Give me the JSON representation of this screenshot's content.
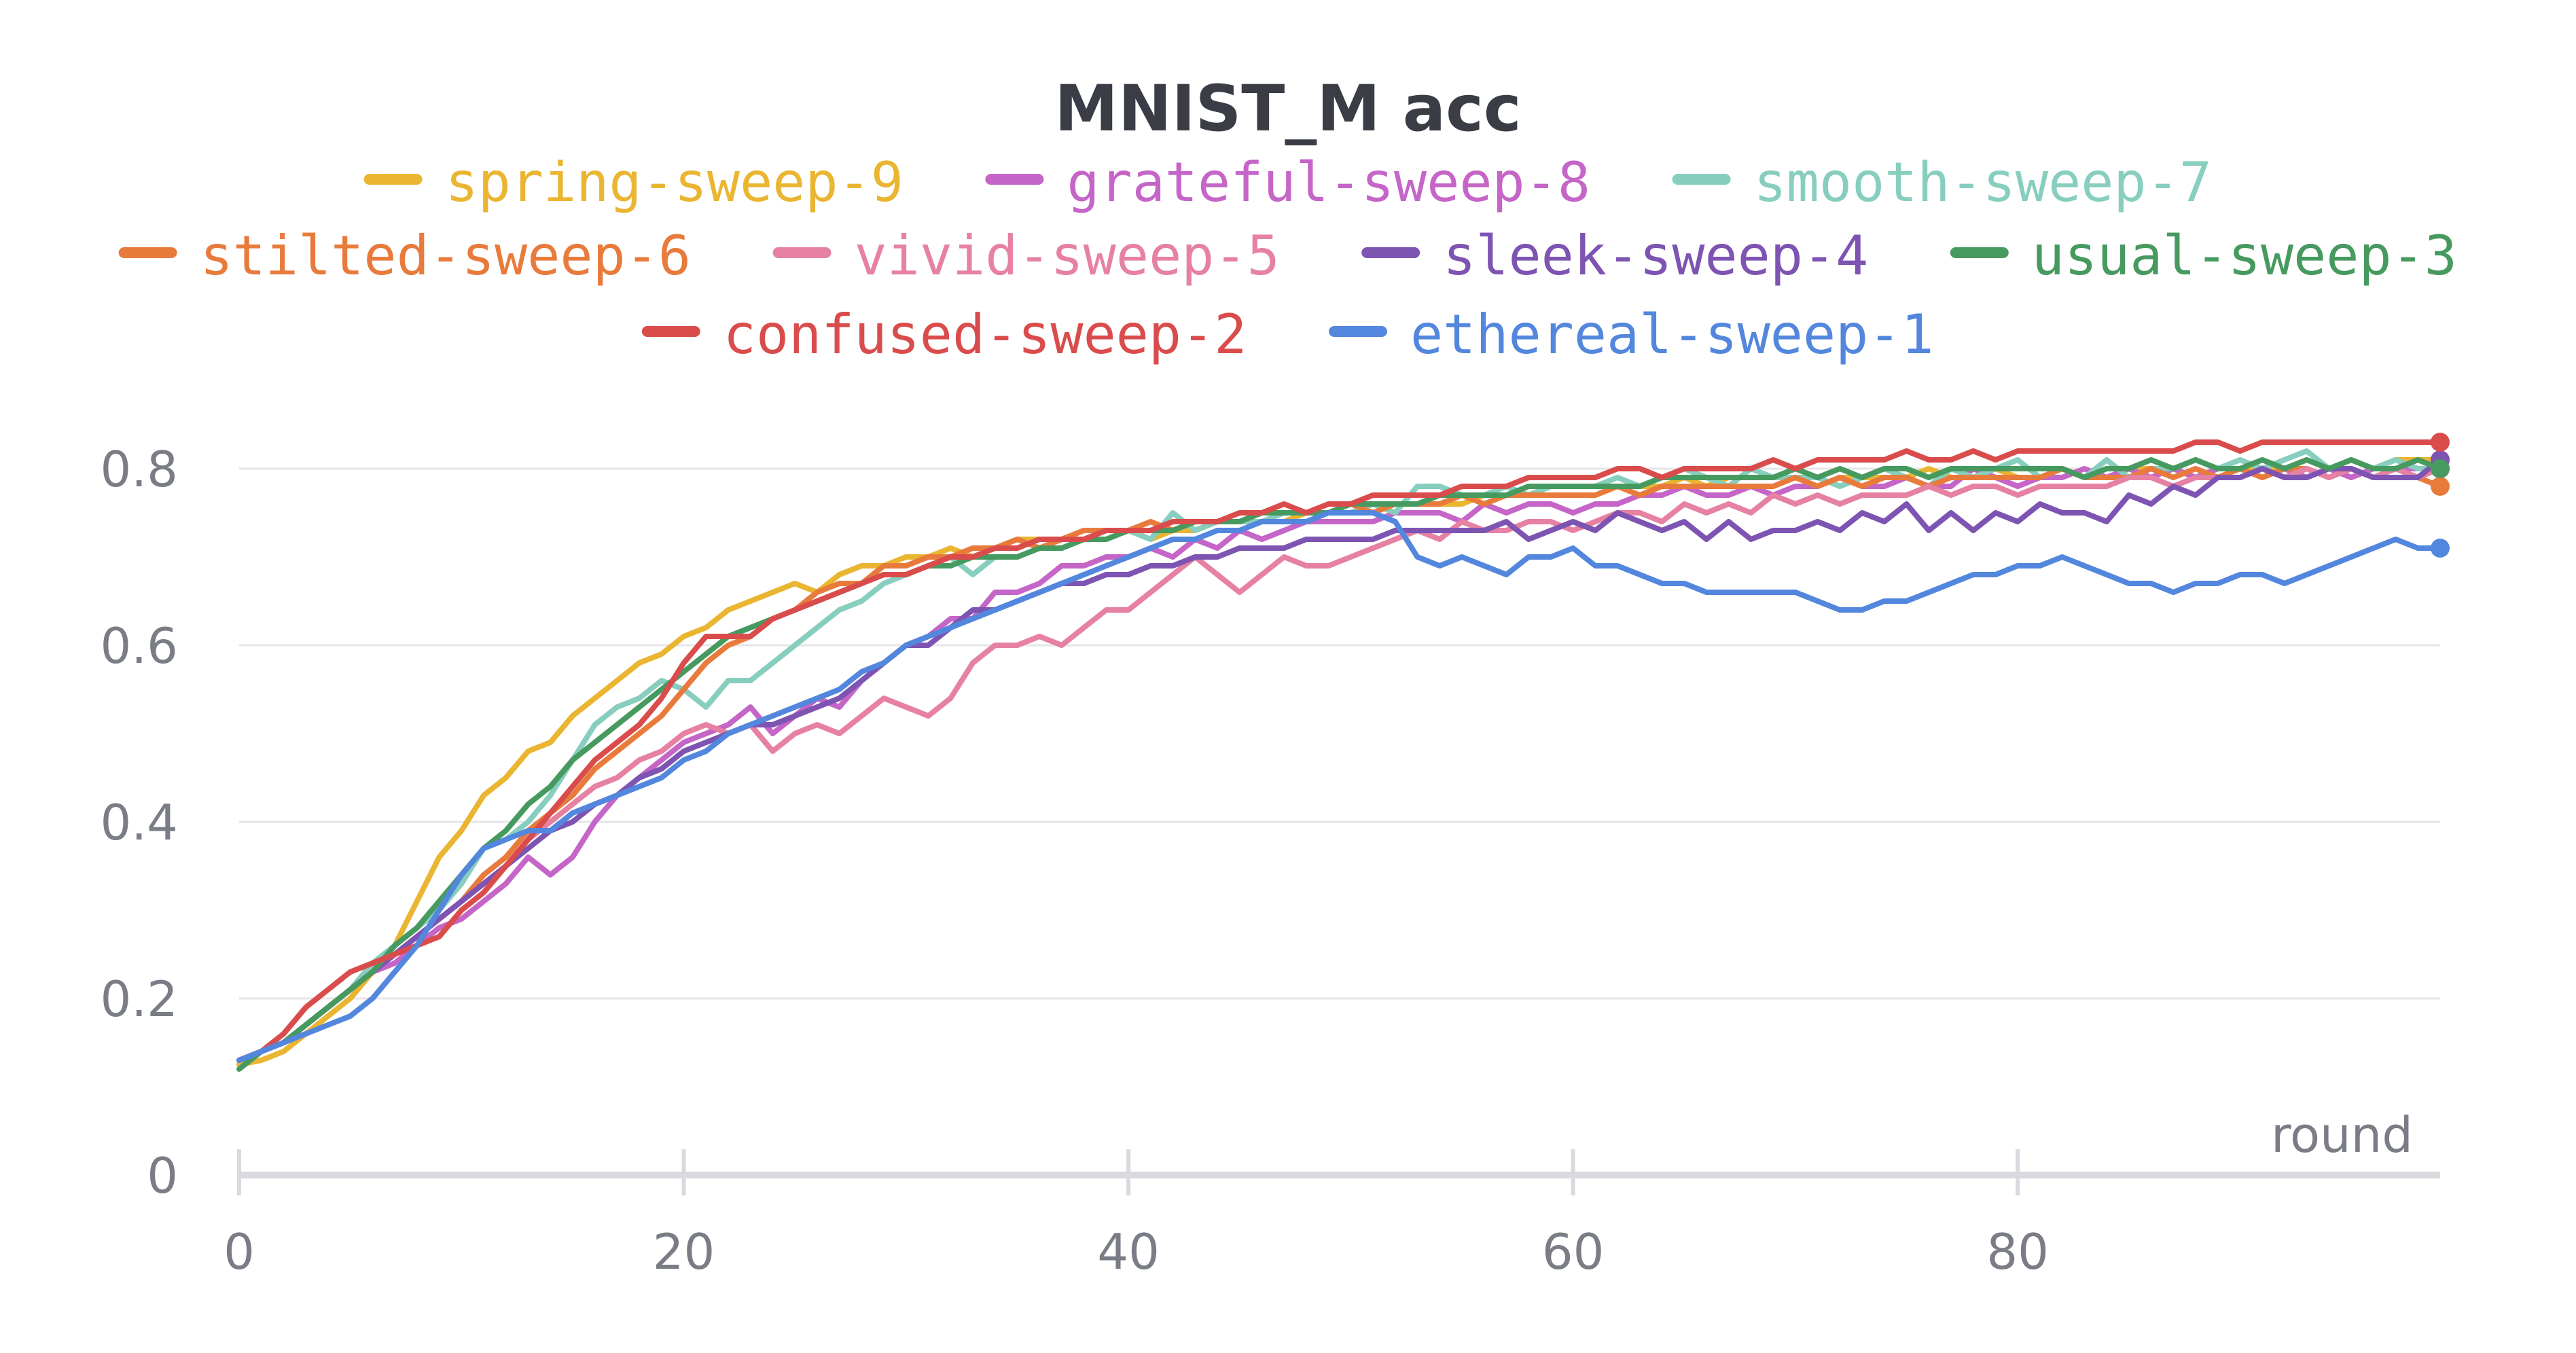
{
  "chart_data": {
    "type": "line",
    "title": "MNIST_M acc",
    "xlabel": "round",
    "ylabel": "",
    "xlim": [
      0,
      99
    ],
    "ylim": [
      0,
      0.9
    ],
    "x_ticks": [
      0,
      20,
      40,
      60,
      80
    ],
    "y_ticks": [
      0,
      0.2,
      0.4,
      0.6,
      0.8
    ],
    "grid": true,
    "legend_position": "top",
    "series": [
      {
        "name": "spring-sweep-9",
        "color": "#eab531",
        "values": [
          0.125,
          0.13,
          0.14,
          0.16,
          0.18,
          0.2,
          0.23,
          0.26,
          0.31,
          0.36,
          0.39,
          0.43,
          0.45,
          0.48,
          0.49,
          0.52,
          0.54,
          0.56,
          0.58,
          0.59,
          0.61,
          0.62,
          0.64,
          0.65,
          0.66,
          0.67,
          0.66,
          0.68,
          0.69,
          0.69,
          0.7,
          0.7,
          0.71,
          0.7,
          0.71,
          0.72,
          0.72,
          0.72,
          0.73,
          0.73,
          0.73,
          0.72,
          0.73,
          0.73,
          0.74,
          0.74,
          0.74,
          0.74,
          0.75,
          0.75,
          0.75,
          0.76,
          0.76,
          0.76,
          0.76,
          0.76,
          0.77,
          0.77,
          0.77,
          0.78,
          0.78,
          0.78,
          0.78,
          0.78,
          0.78,
          0.79,
          0.78,
          0.79,
          0.79,
          0.79,
          0.79,
          0.78,
          0.79,
          0.79,
          0.79,
          0.79,
          0.8,
          0.79,
          0.79,
          0.8,
          0.79,
          0.79,
          0.8,
          0.79,
          0.8,
          0.8,
          0.8,
          0.8,
          0.79,
          0.8,
          0.8,
          0.8,
          0.8,
          0.81,
          0.8,
          0.81,
          0.8,
          0.81,
          0.81,
          0.81
        ]
      },
      {
        "name": "grateful-sweep-8",
        "color": "#c565c7",
        "values": [
          0.13,
          0.14,
          0.15,
          0.17,
          0.19,
          0.21,
          0.23,
          0.24,
          0.26,
          0.28,
          0.29,
          0.31,
          0.33,
          0.36,
          0.34,
          0.36,
          0.4,
          0.43,
          0.45,
          0.47,
          0.49,
          0.5,
          0.51,
          0.53,
          0.5,
          0.52,
          0.54,
          0.53,
          0.56,
          0.58,
          0.6,
          0.61,
          0.63,
          0.63,
          0.66,
          0.66,
          0.67,
          0.69,
          0.69,
          0.7,
          0.7,
          0.71,
          0.7,
          0.72,
          0.71,
          0.73,
          0.72,
          0.73,
          0.74,
          0.74,
          0.74,
          0.74,
          0.75,
          0.75,
          0.75,
          0.74,
          0.76,
          0.75,
          0.76,
          0.76,
          0.75,
          0.76,
          0.76,
          0.77,
          0.77,
          0.78,
          0.77,
          0.77,
          0.78,
          0.77,
          0.78,
          0.78,
          0.79,
          0.78,
          0.78,
          0.79,
          0.78,
          0.78,
          0.8,
          0.79,
          0.78,
          0.79,
          0.79,
          0.8,
          0.79,
          0.8,
          0.79,
          0.8,
          0.79,
          0.8,
          0.8,
          0.79,
          0.8,
          0.79,
          0.8,
          0.79,
          0.8,
          0.8,
          0.8,
          0.8
        ]
      },
      {
        "name": "smooth-sweep-7",
        "color": "#87cebf",
        "values": [
          0.13,
          0.14,
          0.15,
          0.17,
          0.19,
          0.21,
          0.24,
          0.26,
          0.28,
          0.3,
          0.33,
          0.37,
          0.38,
          0.4,
          0.43,
          0.47,
          0.51,
          0.53,
          0.54,
          0.56,
          0.55,
          0.53,
          0.56,
          0.56,
          0.58,
          0.6,
          0.62,
          0.64,
          0.65,
          0.67,
          0.68,
          0.69,
          0.7,
          0.68,
          0.7,
          0.7,
          0.71,
          0.71,
          0.72,
          0.72,
          0.73,
          0.72,
          0.75,
          0.73,
          0.74,
          0.74,
          0.74,
          0.75,
          0.75,
          0.75,
          0.75,
          0.76,
          0.75,
          0.78,
          0.78,
          0.77,
          0.77,
          0.78,
          0.77,
          0.78,
          0.78,
          0.78,
          0.79,
          0.78,
          0.79,
          0.8,
          0.79,
          0.78,
          0.8,
          0.79,
          0.79,
          0.79,
          0.78,
          0.79,
          0.8,
          0.79,
          0.78,
          0.8,
          0.79,
          0.8,
          0.81,
          0.79,
          0.8,
          0.79,
          0.81,
          0.79,
          0.8,
          0.8,
          0.81,
          0.8,
          0.81,
          0.8,
          0.81,
          0.82,
          0.8,
          0.81,
          0.8,
          0.81,
          0.8,
          0.8
        ]
      },
      {
        "name": "stilted-sweep-6",
        "color": "#e87b3c",
        "values": [
          0.13,
          0.14,
          0.15,
          0.17,
          0.19,
          0.21,
          0.23,
          0.25,
          0.27,
          0.29,
          0.31,
          0.34,
          0.36,
          0.39,
          0.41,
          0.43,
          0.46,
          0.48,
          0.5,
          0.52,
          0.55,
          0.58,
          0.6,
          0.61,
          0.63,
          0.64,
          0.66,
          0.67,
          0.67,
          0.69,
          0.69,
          0.7,
          0.7,
          0.71,
          0.71,
          0.72,
          0.71,
          0.72,
          0.73,
          0.73,
          0.73,
          0.74,
          0.73,
          0.74,
          0.74,
          0.74,
          0.75,
          0.75,
          0.75,
          0.75,
          0.76,
          0.75,
          0.76,
          0.76,
          0.76,
          0.77,
          0.76,
          0.77,
          0.77,
          0.77,
          0.77,
          0.77,
          0.78,
          0.77,
          0.78,
          0.78,
          0.78,
          0.78,
          0.78,
          0.78,
          0.79,
          0.78,
          0.79,
          0.78,
          0.79,
          0.79,
          0.78,
          0.79,
          0.79,
          0.79,
          0.79,
          0.79,
          0.8,
          0.79,
          0.79,
          0.79,
          0.8,
          0.79,
          0.8,
          0.79,
          0.8,
          0.79,
          0.8,
          0.8,
          0.79,
          0.8,
          0.79,
          0.8,
          0.79,
          0.78
        ]
      },
      {
        "name": "vivid-sweep-5",
        "color": "#e681a4",
        "values": [
          0.13,
          0.14,
          0.15,
          0.17,
          0.19,
          0.21,
          0.23,
          0.25,
          0.27,
          0.29,
          0.31,
          0.33,
          0.35,
          0.38,
          0.4,
          0.42,
          0.44,
          0.45,
          0.47,
          0.48,
          0.5,
          0.51,
          0.5,
          0.51,
          0.48,
          0.5,
          0.51,
          0.5,
          0.52,
          0.54,
          0.53,
          0.52,
          0.54,
          0.58,
          0.6,
          0.6,
          0.61,
          0.6,
          0.62,
          0.64,
          0.64,
          0.66,
          0.68,
          0.7,
          0.68,
          0.66,
          0.68,
          0.7,
          0.69,
          0.69,
          0.7,
          0.71,
          0.72,
          0.73,
          0.72,
          0.74,
          0.73,
          0.73,
          0.74,
          0.74,
          0.73,
          0.74,
          0.75,
          0.75,
          0.74,
          0.76,
          0.75,
          0.76,
          0.75,
          0.77,
          0.76,
          0.77,
          0.76,
          0.77,
          0.77,
          0.77,
          0.78,
          0.77,
          0.78,
          0.78,
          0.77,
          0.78,
          0.78,
          0.78,
          0.78,
          0.79,
          0.79,
          0.78,
          0.79,
          0.79,
          0.79,
          0.8,
          0.79,
          0.8,
          0.79,
          0.8,
          0.79,
          0.8,
          0.79,
          0.8
        ]
      },
      {
        "name": "sleek-sweep-4",
        "color": "#7d54b2",
        "values": [
          0.13,
          0.14,
          0.15,
          0.17,
          0.19,
          0.21,
          0.23,
          0.25,
          0.27,
          0.29,
          0.31,
          0.33,
          0.35,
          0.37,
          0.39,
          0.4,
          0.42,
          0.43,
          0.45,
          0.46,
          0.48,
          0.49,
          0.5,
          0.51,
          0.51,
          0.52,
          0.53,
          0.54,
          0.56,
          0.58,
          0.6,
          0.6,
          0.62,
          0.64,
          0.64,
          0.65,
          0.66,
          0.67,
          0.67,
          0.68,
          0.68,
          0.69,
          0.69,
          0.7,
          0.7,
          0.71,
          0.71,
          0.71,
          0.72,
          0.72,
          0.72,
          0.72,
          0.73,
          0.73,
          0.73,
          0.73,
          0.73,
          0.74,
          0.72,
          0.73,
          0.74,
          0.73,
          0.75,
          0.74,
          0.73,
          0.74,
          0.72,
          0.74,
          0.72,
          0.73,
          0.73,
          0.74,
          0.73,
          0.75,
          0.74,
          0.76,
          0.73,
          0.75,
          0.73,
          0.75,
          0.74,
          0.76,
          0.75,
          0.75,
          0.74,
          0.77,
          0.76,
          0.78,
          0.77,
          0.79,
          0.79,
          0.8,
          0.79,
          0.79,
          0.8,
          0.8,
          0.79,
          0.79,
          0.79,
          0.81
        ]
      },
      {
        "name": "usual-sweep-3",
        "color": "#479a5f",
        "values": [
          0.12,
          0.14,
          0.15,
          0.17,
          0.19,
          0.21,
          0.23,
          0.26,
          0.28,
          0.31,
          0.34,
          0.37,
          0.39,
          0.42,
          0.44,
          0.47,
          0.49,
          0.51,
          0.53,
          0.55,
          0.57,
          0.59,
          0.61,
          0.62,
          0.63,
          0.64,
          0.65,
          0.66,
          0.67,
          0.68,
          0.68,
          0.69,
          0.69,
          0.7,
          0.7,
          0.7,
          0.71,
          0.71,
          0.72,
          0.72,
          0.73,
          0.73,
          0.73,
          0.74,
          0.74,
          0.74,
          0.75,
          0.75,
          0.75,
          0.75,
          0.76,
          0.76,
          0.76,
          0.76,
          0.77,
          0.77,
          0.77,
          0.77,
          0.78,
          0.78,
          0.78,
          0.78,
          0.78,
          0.78,
          0.79,
          0.79,
          0.79,
          0.79,
          0.79,
          0.79,
          0.8,
          0.79,
          0.8,
          0.79,
          0.8,
          0.8,
          0.79,
          0.8,
          0.8,
          0.8,
          0.8,
          0.8,
          0.8,
          0.79,
          0.8,
          0.8,
          0.81,
          0.8,
          0.81,
          0.8,
          0.8,
          0.81,
          0.8,
          0.81,
          0.8,
          0.81,
          0.8,
          0.8,
          0.81,
          0.8
        ]
      },
      {
        "name": "confused-sweep-2",
        "color": "#da4c4c",
        "values": [
          0.13,
          0.14,
          0.16,
          0.19,
          0.21,
          0.23,
          0.24,
          0.25,
          0.26,
          0.27,
          0.3,
          0.32,
          0.35,
          0.38,
          0.41,
          0.44,
          0.47,
          0.49,
          0.51,
          0.54,
          0.58,
          0.61,
          0.61,
          0.61,
          0.63,
          0.64,
          0.65,
          0.66,
          0.67,
          0.68,
          0.68,
          0.69,
          0.7,
          0.7,
          0.71,
          0.71,
          0.72,
          0.72,
          0.72,
          0.73,
          0.73,
          0.73,
          0.74,
          0.74,
          0.74,
          0.75,
          0.75,
          0.76,
          0.75,
          0.76,
          0.76,
          0.77,
          0.77,
          0.77,
          0.77,
          0.78,
          0.78,
          0.78,
          0.79,
          0.79,
          0.79,
          0.79,
          0.8,
          0.8,
          0.79,
          0.8,
          0.8,
          0.8,
          0.8,
          0.81,
          0.8,
          0.81,
          0.81,
          0.81,
          0.81,
          0.82,
          0.81,
          0.81,
          0.82,
          0.81,
          0.82,
          0.82,
          0.82,
          0.82,
          0.82,
          0.82,
          0.82,
          0.82,
          0.83,
          0.83,
          0.82,
          0.83,
          0.83,
          0.83,
          0.83,
          0.83,
          0.83,
          0.83,
          0.83,
          0.83
        ]
      },
      {
        "name": "ethereal-sweep-1",
        "color": "#5387dd",
        "values": [
          0.13,
          0.14,
          0.15,
          0.16,
          0.17,
          0.18,
          0.2,
          0.23,
          0.26,
          0.3,
          0.34,
          0.37,
          0.38,
          0.39,
          0.39,
          0.41,
          0.42,
          0.43,
          0.44,
          0.45,
          0.47,
          0.48,
          0.5,
          0.51,
          0.52,
          0.53,
          0.54,
          0.55,
          0.57,
          0.58,
          0.6,
          0.61,
          0.62,
          0.63,
          0.64,
          0.65,
          0.66,
          0.67,
          0.68,
          0.69,
          0.7,
          0.71,
          0.72,
          0.72,
          0.73,
          0.73,
          0.74,
          0.74,
          0.74,
          0.75,
          0.75,
          0.75,
          0.74,
          0.7,
          0.69,
          0.7,
          0.69,
          0.68,
          0.7,
          0.7,
          0.71,
          0.69,
          0.69,
          0.68,
          0.67,
          0.67,
          0.66,
          0.66,
          0.66,
          0.66,
          0.66,
          0.65,
          0.64,
          0.64,
          0.65,
          0.65,
          0.66,
          0.67,
          0.68,
          0.68,
          0.69,
          0.69,
          0.7,
          0.69,
          0.68,
          0.67,
          0.67,
          0.66,
          0.67,
          0.67,
          0.68,
          0.68,
          0.67,
          0.68,
          0.69,
          0.7,
          0.71,
          0.72,
          0.71,
          0.71
        ]
      }
    ]
  }
}
